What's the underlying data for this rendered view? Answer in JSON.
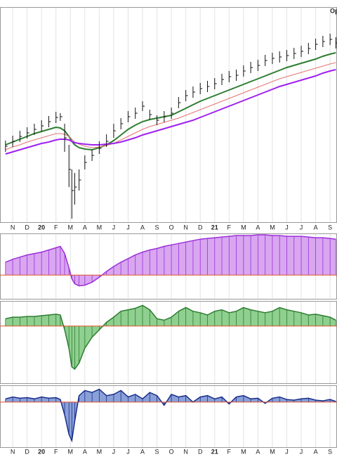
{
  "chart_data": [
    {
      "type": "price",
      "annotation": "Op",
      "x": [
        -0.5,
        0,
        0.5,
        1,
        1.5,
        2,
        2.5,
        3,
        3.3,
        3.6,
        3.9,
        4.1,
        4.3,
        4.6,
        5,
        5.5,
        6,
        6.5,
        7,
        7.5,
        8,
        8.5,
        9,
        9.5,
        10,
        10.5,
        11,
        11.5,
        12,
        12.5,
        13,
        13.5,
        14,
        14.5,
        15,
        15.5,
        16,
        16.5,
        17,
        17.5,
        18,
        18.5,
        19,
        19.5,
        20,
        20.5,
        21,
        21.5,
        22,
        22.4
      ],
      "high": [
        116,
        123,
        130,
        135,
        140,
        145,
        151,
        157,
        155,
        140,
        110,
        75,
        70,
        75,
        95,
        103,
        115,
        125,
        140,
        148,
        158,
        163,
        172,
        160,
        152,
        158,
        163,
        178,
        188,
        193,
        198,
        201,
        205,
        211,
        215,
        217,
        223,
        228,
        231,
        238,
        241,
        243,
        245,
        248,
        251,
        255,
        261,
        265,
        268,
        263
      ],
      "low": [
        100,
        107,
        114,
        119,
        124,
        129,
        135,
        141,
        144,
        100,
        50,
        5,
        25,
        45,
        75,
        87,
        97,
        107,
        120,
        132,
        142,
        147,
        158,
        146,
        138,
        142,
        147,
        162,
        172,
        177,
        182,
        185,
        189,
        195,
        199,
        201,
        207,
        212,
        215,
        222,
        225,
        227,
        229,
        232,
        235,
        239,
        245,
        249,
        252,
        247
      ],
      "close": [
        108,
        115,
        122,
        127,
        132,
        137,
        143,
        149,
        150,
        120,
        75,
        45,
        50,
        60,
        85,
        95,
        105,
        115,
        130,
        140,
        150,
        155,
        165,
        153,
        145,
        150,
        155,
        170,
        180,
        185,
        190,
        193,
        197,
        203,
        207,
        209,
        215,
        220,
        223,
        230,
        233,
        235,
        237,
        240,
        243,
        247,
        253,
        257,
        260,
        255
      ],
      "bar_color": "#111111",
      "moving_averages": [
        {
          "color": "#2e7d32",
          "values": [
            110,
            114,
            118,
            122,
            126,
            129,
            132,
            135,
            134,
            130,
            122,
            115,
            110,
            106,
            104,
            103,
            106,
            110,
            116,
            124,
            132,
            138,
            143,
            146,
            148,
            150,
            152,
            157,
            162,
            167,
            172,
            176,
            180,
            184,
            188,
            192,
            196,
            200,
            204,
            208,
            212,
            216,
            220,
            223,
            226,
            229,
            232,
            236,
            239,
            241
          ]
        },
        {
          "color": "#e57373",
          "values": [
            103,
            107,
            110,
            114,
            117,
            120,
            123,
            126,
            126,
            125,
            122,
            118,
            114,
            111,
            108,
            106,
            107,
            109,
            112,
            117,
            122,
            127,
            132,
            136,
            139,
            142,
            145,
            148,
            152,
            156,
            160,
            164,
            168,
            172,
            176,
            180,
            184,
            188,
            192,
            196,
            200,
            204,
            207,
            210,
            213,
            216,
            219,
            222,
            225,
            227
          ]
        },
        {
          "color": "#a020f0",
          "values": [
            97,
            100,
            103,
            106,
            109,
            112,
            114,
            117,
            118,
            118,
            117,
            115,
            113,
            112,
            111,
            110,
            110,
            111,
            112,
            114,
            117,
            120,
            124,
            127,
            130,
            133,
            136,
            139,
            142,
            145,
            149,
            153,
            157,
            161,
            165,
            169,
            173,
            177,
            181,
            185,
            189,
            193,
            196,
            199,
            202,
            205,
            208,
            212,
            215,
            217
          ]
        }
      ],
      "xlim": [
        -0.88,
        22.48
      ],
      "ylim": [
        0,
        305
      ],
      "xticks": [
        {
          "value": 0,
          "label": "N"
        },
        {
          "value": 1,
          "label": "D"
        },
        {
          "value": 2,
          "label": "20"
        },
        {
          "value": 3,
          "label": "F"
        },
        {
          "value": 4,
          "label": "M"
        },
        {
          "value": 5,
          "label": "A"
        },
        {
          "value": 6,
          "label": "M"
        },
        {
          "value": 7,
          "label": "J"
        },
        {
          "value": 8,
          "label": "J"
        },
        {
          "value": 9,
          "label": "A"
        },
        {
          "value": 10,
          "label": "S"
        },
        {
          "value": 11,
          "label": "O"
        },
        {
          "value": 12,
          "label": "N"
        },
        {
          "value": 13,
          "label": "D"
        },
        {
          "value": 14,
          "label": "21"
        },
        {
          "value": 15,
          "label": "F"
        },
        {
          "value": 16,
          "label": "M"
        },
        {
          "value": 17,
          "label": "A"
        },
        {
          "value": 18,
          "label": "M"
        },
        {
          "value": 19,
          "label": "J"
        },
        {
          "value": 20,
          "label": "J"
        },
        {
          "value": 21,
          "label": "A"
        },
        {
          "value": 22,
          "label": "S"
        }
      ],
      "grid": true
    },
    {
      "type": "histogram-area",
      "x": [
        -0.5,
        0,
        0.5,
        1,
        1.5,
        2,
        2.5,
        3,
        3.3,
        3.6,
        3.9,
        4.1,
        4.3,
        4.6,
        5,
        5.5,
        6,
        6.5,
        7,
        7.5,
        8,
        8.5,
        9,
        9.5,
        10,
        10.5,
        11,
        11.5,
        12,
        12.5,
        13,
        13.5,
        14,
        14.5,
        15,
        15.5,
        16,
        16.5,
        17,
        17.5,
        18,
        18.5,
        19,
        19.5,
        20,
        20.5,
        21,
        21.5,
        22,
        22.4
      ],
      "values": [
        18,
        22,
        25,
        28,
        30,
        32,
        35,
        38,
        40,
        30,
        10,
        -5,
        -12,
        -15,
        -14,
        -10,
        -3,
        5,
        12,
        18,
        23,
        28,
        32,
        35,
        37,
        40,
        42,
        44,
        46,
        48,
        50,
        51,
        52,
        53,
        54,
        55,
        55,
        55,
        56,
        56,
        55,
        55,
        54,
        54,
        54,
        53,
        52,
        52,
        51,
        50
      ],
      "color": "#9b30d9",
      "fill": "#d9a6f0",
      "xlim": [
        -0.88,
        22.48
      ],
      "ylim": [
        -33,
        57
      ]
    },
    {
      "type": "histogram-area",
      "x": [
        -0.5,
        0,
        0.5,
        1,
        1.5,
        2,
        2.5,
        3,
        3.3,
        3.6,
        3.9,
        4.1,
        4.3,
        4.6,
        5,
        5.5,
        6,
        6.5,
        7,
        7.5,
        8,
        8.5,
        9,
        9.5,
        10,
        10.5,
        11,
        11.5,
        12,
        12.5,
        13,
        13.5,
        14,
        14.5,
        15,
        15.5,
        16,
        16.5,
        17,
        17.5,
        18,
        18.5,
        19,
        19.5,
        20,
        20.5,
        21,
        21.5,
        22,
        22.4
      ],
      "values": [
        10,
        12,
        12,
        13,
        13,
        14,
        15,
        16,
        15,
        -5,
        -30,
        -55,
        -58,
        -50,
        -30,
        -15,
        -5,
        5,
        12,
        20,
        22,
        24,
        28,
        22,
        10,
        8,
        12,
        20,
        25,
        20,
        18,
        15,
        20,
        22,
        18,
        20,
        25,
        22,
        20,
        18,
        20,
        25,
        22,
        20,
        18,
        15,
        16,
        14,
        12,
        8
      ],
      "color": "#2e7d32",
      "fill": "#8fcf8f",
      "xlim": [
        -0.88,
        22.48
      ],
      "ylim": [
        -77,
        33
      ]
    },
    {
      "type": "histogram-area",
      "x": [
        -0.5,
        0,
        0.5,
        1,
        1.5,
        2,
        2.5,
        3,
        3.3,
        3.6,
        3.9,
        4.1,
        4.3,
        4.6,
        5,
        5.5,
        6,
        6.5,
        7,
        7.5,
        8,
        8.5,
        9,
        9.5,
        10,
        10.5,
        11,
        11.5,
        12,
        12.5,
        13,
        13.5,
        14,
        14.5,
        15,
        15.5,
        16,
        16.5,
        17,
        17.5,
        18,
        18.5,
        19,
        19.5,
        20,
        20.5,
        21,
        21.5,
        22,
        22.4
      ],
      "values": [
        5,
        8,
        6,
        7,
        5,
        8,
        6,
        7,
        4,
        -20,
        -50,
        -60,
        -30,
        10,
        18,
        15,
        20,
        10,
        12,
        18,
        8,
        12,
        5,
        15,
        10,
        -5,
        12,
        8,
        10,
        0,
        8,
        10,
        5,
        8,
        -3,
        8,
        10,
        5,
        6,
        -2,
        6,
        8,
        4,
        3,
        5,
        6,
        3,
        2,
        4,
        1
      ],
      "color": "#1a2f8a",
      "fill": "#8aa0d8",
      "xlim": [
        -0.88,
        22.48
      ],
      "ylim": [
        -70,
        25
      ],
      "xticks": [
        {
          "value": 0,
          "label": "N"
        },
        {
          "value": 1,
          "label": "D"
        },
        {
          "value": 2,
          "label": "20"
        },
        {
          "value": 3,
          "label": "F"
        },
        {
          "value": 4,
          "label": "M"
        },
        {
          "value": 5,
          "label": "A"
        },
        {
          "value": 6,
          "label": "M"
        },
        {
          "value": 7,
          "label": "J"
        },
        {
          "value": 8,
          "label": "J"
        },
        {
          "value": 9,
          "label": "A"
        },
        {
          "value": 10,
          "label": "S"
        },
        {
          "value": 11,
          "label": "O"
        },
        {
          "value": 12,
          "label": "N"
        },
        {
          "value": 13,
          "label": "D"
        },
        {
          "value": 14,
          "label": "21"
        },
        {
          "value": 15,
          "label": "F"
        },
        {
          "value": 16,
          "label": "M"
        },
        {
          "value": 17,
          "label": "A"
        },
        {
          "value": 18,
          "label": "M"
        },
        {
          "value": 19,
          "label": "J"
        },
        {
          "value": 20,
          "label": "J"
        },
        {
          "value": 21,
          "label": "A"
        },
        {
          "value": 22,
          "label": "S"
        }
      ]
    }
  ]
}
